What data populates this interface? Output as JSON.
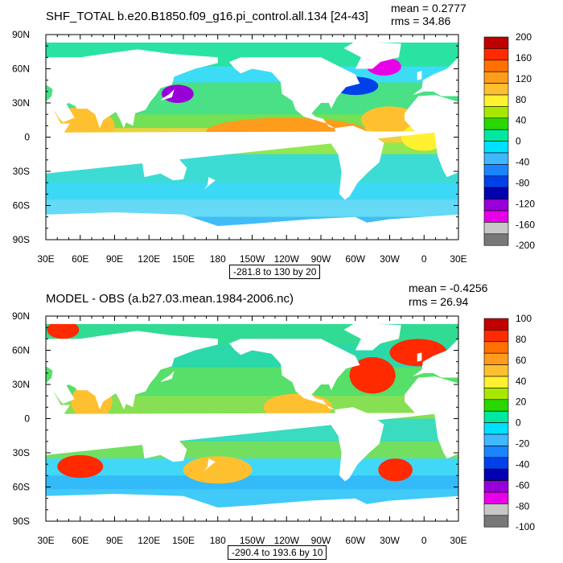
{
  "chart_data": [
    {
      "type": "heatmap",
      "subtype": "global-lat-lon-contour-map",
      "title": "SHF_TOTAL b.e20.B1850.f09_g16.pi_control.all.134 [24-43]",
      "stats": {
        "mean": "mean = 0.2777",
        "rms": "rms = 34.86"
      },
      "range_label": "-281.8 to 130 by 20",
      "x_ticks": [
        "30E",
        "60E",
        "90E",
        "120E",
        "150E",
        "180",
        "150W",
        "120W",
        "90W",
        "60W",
        "30W",
        "0",
        "30E"
      ],
      "y_ticks": [
        "90N",
        "60N",
        "30N",
        "0",
        "30S",
        "60S",
        "90S"
      ],
      "xlim": [
        30,
        390
      ],
      "ylim": [
        -90,
        90
      ],
      "colorbar": {
        "labels": [
          "200",
          "160",
          "120",
          "80",
          "40",
          "0",
          "-40",
          "-80",
          "-120",
          "-160",
          "-200"
        ],
        "colors": [
          "#c00000",
          "#ff2a00",
          "#ff7000",
          "#ff9c1c",
          "#ffc030",
          "#fff030",
          "#a8e800",
          "#28d800",
          "#00e8a0",
          "#00e0ff",
          "#40b8ff",
          "#1a84ff",
          "#0040e8",
          "#0000b0",
          "#9800d8",
          "#e800e8",
          "#c8c8c8",
          "#787878"
        ]
      }
    },
    {
      "type": "heatmap",
      "subtype": "global-lat-lon-contour-map",
      "title": "MODEL - OBS (a.b27.03.mean.1984-2006.nc)",
      "stats": {
        "mean": "mean = -0.4256",
        "rms": "rms = 26.94"
      },
      "range_label": "-290.4 to 193.6 by 10",
      "x_ticks": [
        "30E",
        "60E",
        "90E",
        "120E",
        "150E",
        "180",
        "150W",
        "120W",
        "90W",
        "60W",
        "30W",
        "0",
        "30E"
      ],
      "y_ticks": [
        "90N",
        "60N",
        "30N",
        "0",
        "30S",
        "60S",
        "90S"
      ],
      "xlim": [
        30,
        390
      ],
      "ylim": [
        -90,
        90
      ],
      "colorbar": {
        "labels": [
          "100",
          "80",
          "60",
          "40",
          "20",
          "0",
          "-20",
          "-40",
          "-60",
          "-80",
          "-100"
        ],
        "colors": [
          "#c00000",
          "#ff2a00",
          "#ff7000",
          "#ff9c1c",
          "#ffc030",
          "#fff030",
          "#a8e800",
          "#28d800",
          "#00e8a0",
          "#00e0ff",
          "#40b8ff",
          "#1a84ff",
          "#0040e8",
          "#0000b0",
          "#9800d8",
          "#e800e8",
          "#c8c8c8",
          "#787878"
        ]
      }
    }
  ]
}
